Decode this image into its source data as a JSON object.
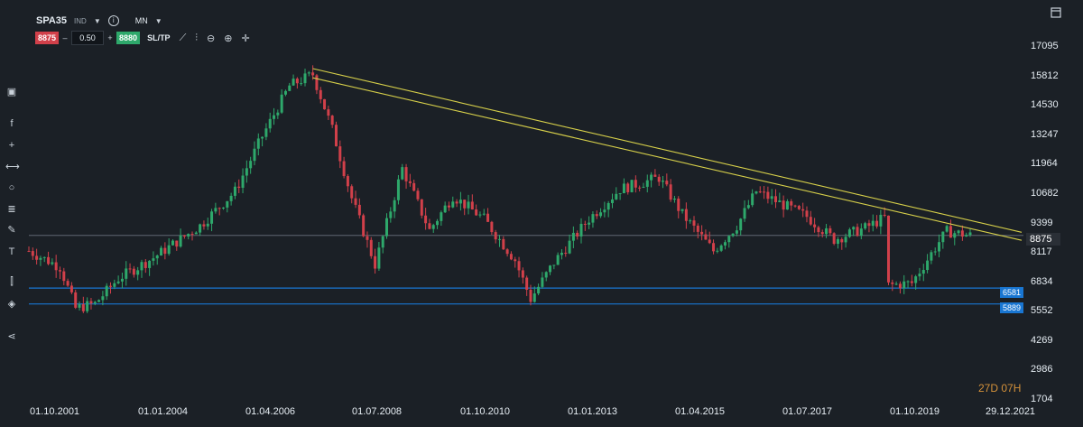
{
  "header": {
    "symbol": "SPA35",
    "exchange": "IND",
    "timeframe": "MN",
    "icons": [
      "chevron-down-icon",
      "info-icon",
      "maximize-icon"
    ]
  },
  "trade": {
    "sell_price": "8875",
    "quantity": "0.50",
    "buy_price": "8880",
    "sltp_label": "SL/TP",
    "minus": "–",
    "plus": "+",
    "tools": [
      "line-chart-icon",
      "candles-icon",
      "zoom-out-icon",
      "zoom-in-icon",
      "crosshair-icon"
    ]
  },
  "left_tools": [
    "rectangle-icon",
    "function-icon",
    "plus-icon",
    "segment-icon",
    "circle-icon",
    "fibonacci-icon",
    "pen-icon",
    "text-icon",
    "indicator-icon",
    "layers-icon",
    "share-icon"
  ],
  "colors": {
    "background": "#1b2026",
    "bull": "#2ea86b",
    "bear": "#d1404a",
    "trendline": "#d7d04a",
    "support": "#1976d2",
    "current_line": "#6b7280"
  },
  "countdown": "27D 07H",
  "levels": {
    "current": "8875",
    "support1": "6581",
    "support2": "5889"
  },
  "chart_data": {
    "type": "candlestick",
    "title": "",
    "y_ticks": [
      "17095",
      "15812",
      "14530",
      "13247",
      "11964",
      "10682",
      "9399",
      "8117",
      "6834",
      "5552",
      "4269",
      "2986",
      "1704"
    ],
    "x_ticks": [
      "01.10.2001",
      "01.01.2004",
      "01.04.2006",
      "01.07.2008",
      "01.10.2010",
      "01.01.2013",
      "01.04.2015",
      "01.07.2017",
      "01.10.2019",
      "29.12.2021"
    ],
    "ylim": [
      1704,
      17095
    ],
    "horizontal_lines": [
      {
        "value": 6581,
        "label": "6581"
      },
      {
        "value": 5889,
        "label": "5889"
      },
      {
        "value": 8875,
        "label": "8875"
      }
    ],
    "trendlines": [
      {
        "from": [
          "2007-11",
          16150
        ],
        "to": [
          "2021-12",
          9250
        ]
      },
      {
        "from": [
          "2007-11",
          15750
        ],
        "to": [
          "2021-12",
          8900
        ]
      }
    ],
    "close_path": [
      [
        "2001-10",
        8200
      ],
      [
        "2002-06",
        7500
      ],
      [
        "2002-10",
        5700
      ],
      [
        "2003-03",
        5900
      ],
      [
        "2003-09",
        7000
      ],
      [
        "2004-06",
        7900
      ],
      [
        "2005-06",
        9300
      ],
      [
        "2006-03",
        10800
      ],
      [
        "2006-10",
        13200
      ],
      [
        "2007-05",
        15400
      ],
      [
        "2007-11",
        15900
      ],
      [
        "2008-04",
        13500
      ],
      [
        "2008-09",
        10500
      ],
      [
        "2009-03",
        7600
      ],
      [
        "2009-10",
        11800
      ],
      [
        "2010-05",
        9100
      ],
      [
        "2010-11",
        10600
      ],
      [
        "2011-07",
        9600
      ],
      [
        "2012-03",
        7800
      ],
      [
        "2012-07",
        6100
      ],
      [
        "2013-01",
        7700
      ],
      [
        "2013-10",
        9600
      ],
      [
        "2014-06",
        10900
      ],
      [
        "2015-04",
        11400
      ],
      [
        "2015-10",
        9800
      ],
      [
        "2016-06",
        8200
      ],
      [
        "2016-12",
        9300
      ],
      [
        "2017-05",
        10800
      ],
      [
        "2018-06",
        9700
      ],
      [
        "2019-01",
        8700
      ],
      [
        "2019-09",
        9200
      ],
      [
        "2020-02",
        9650
      ],
      [
        "2020-03",
        6700
      ],
      [
        "2020-09",
        6800
      ],
      [
        "2021-04",
        8600
      ],
      [
        "2021-06",
        9050
      ],
      [
        "2021-12",
        8875
      ]
    ]
  }
}
